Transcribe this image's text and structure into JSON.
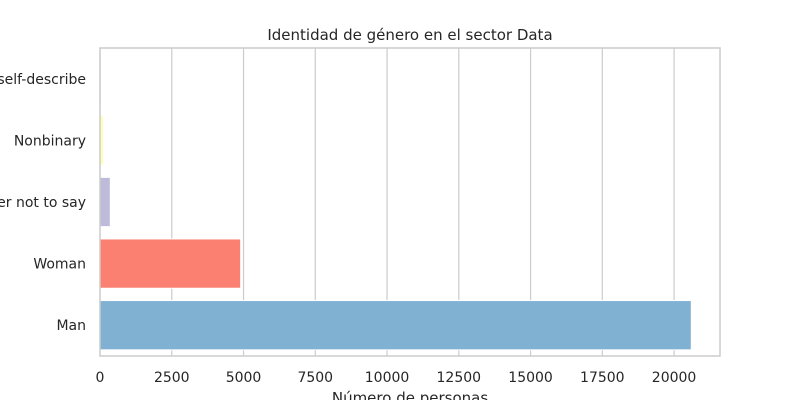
{
  "chart_data": {
    "type": "bar",
    "orientation": "horizontal",
    "title": "Identidad de género en el sector Data",
    "xlabel": "Número de personas",
    "ylabel": "",
    "categories": [
      "Prefer to self-describe",
      "Nonbinary",
      "Prefer not to say",
      "Woman",
      "Man"
    ],
    "values": [
      40,
      120,
      360,
      4900,
      20600
    ],
    "colors": [
      "#8dd3c7",
      "#ffffb3",
      "#bebada",
      "#fb8072",
      "#80b1d3"
    ],
    "xlim": [
      0,
      21600
    ],
    "xticks": [
      0,
      2500,
      5000,
      7500,
      10000,
      12500,
      15000,
      17500,
      20000
    ],
    "grid": true,
    "legend": "none"
  }
}
